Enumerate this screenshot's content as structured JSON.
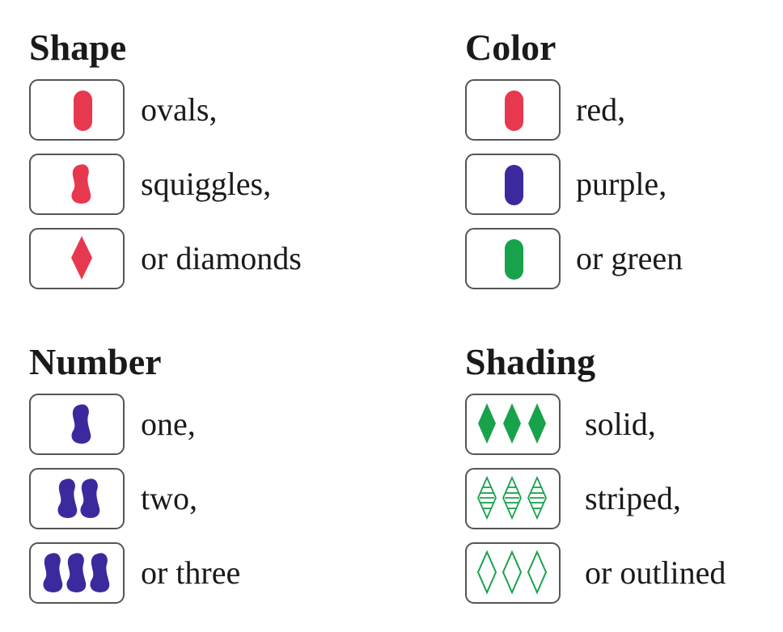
{
  "colors": {
    "red": "#e8384f",
    "purple": "#3b2a9e",
    "green": "#19a24c",
    "card_border": "#555555"
  },
  "shape": {
    "title": "Shape",
    "rows": [
      {
        "label": "ovals,",
        "icon": "oval-icon"
      },
      {
        "label": "squiggles,",
        "icon": "squiggle-icon"
      },
      {
        "label": "or diamonds",
        "icon": "diamond-icon"
      }
    ]
  },
  "color": {
    "title": "Color",
    "rows": [
      {
        "label": "red,",
        "icon": "red-oval-icon"
      },
      {
        "label": "purple,",
        "icon": "purple-oval-icon"
      },
      {
        "label": "or green",
        "icon": "green-oval-icon"
      }
    ]
  },
  "number": {
    "title": "Number",
    "rows": [
      {
        "label": "one,",
        "icon": "one-squiggle-icon"
      },
      {
        "label": "two,",
        "icon": "two-squiggles-icon"
      },
      {
        "label": "or three",
        "icon": "three-squiggles-icon"
      }
    ]
  },
  "shading": {
    "title": "Shading",
    "rows": [
      {
        "label": "solid,",
        "icon": "solid-diamonds-icon"
      },
      {
        "label": "striped,",
        "icon": "striped-diamonds-icon"
      },
      {
        "label": "or outlined",
        "icon": "outlined-diamonds-icon"
      }
    ]
  }
}
